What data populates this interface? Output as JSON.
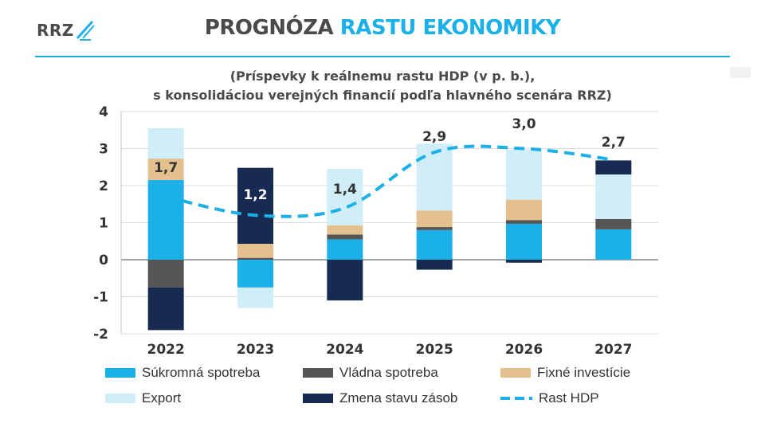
{
  "logo": {
    "text": "RRZ"
  },
  "header": {
    "title_part1": "PROGNÓZA",
    "title_part2": "RASTU EKONOMIKY"
  },
  "colors": {
    "accent": "#1bb0e8",
    "sukromna": "#1bb0e8",
    "vladna": "#555555",
    "fixne": "#e3c08e",
    "export": "#cfeef8",
    "zasoby": "#162a52",
    "hdp": "#1bb0e8"
  },
  "chart_data": {
    "type": "bar",
    "title": "(Príspevky k reálnemu rastu HDP (v p. b.),",
    "subtitle": "s konsolidáciou verejných financií podľa hlavného scenára RRZ)",
    "categories": [
      "2022",
      "2023",
      "2024",
      "2025",
      "2026",
      "2027"
    ],
    "ylim": [
      -2,
      4
    ],
    "yticks": [
      "-2",
      "-1",
      "0",
      "1",
      "2",
      "3",
      "4"
    ],
    "ytick_values": [
      -2,
      -1,
      0,
      1,
      2,
      3,
      4
    ],
    "grid": true,
    "legend_position": "bottom",
    "stacked": true,
    "series": [
      {
        "name": "Súkromná spotreba",
        "color": "#1bb0e8",
        "values": [
          2.15,
          -0.75,
          0.55,
          0.8,
          0.97,
          0.82
        ]
      },
      {
        "name": "Vládna spotreba",
        "color": "#555555",
        "values": [
          -0.75,
          0.05,
          0.13,
          0.08,
          0.1,
          0.28
        ]
      },
      {
        "name": "Fixné investície",
        "color": "#e3c08e",
        "values": [
          0.58,
          0.38,
          0.25,
          0.45,
          0.55,
          0.0
        ]
      },
      {
        "name": "Export",
        "color": "#cfeef8",
        "values": [
          0.82,
          -0.55,
          1.52,
          1.8,
          1.35,
          1.2
        ]
      },
      {
        "name": "Zmena stavu zásob",
        "color": "#162a52",
        "values": [
          -1.15,
          2.05,
          -1.1,
          -0.27,
          -0.08,
          0.38
        ]
      },
      {
        "name": "Rast HDP",
        "type": "line",
        "color": "#1bb0e8",
        "dash": true,
        "values": [
          1.7,
          1.2,
          1.4,
          2.9,
          3.0,
          2.7
        ]
      }
    ],
    "data_labels": [
      "1,7",
      "1,2",
      "1,4",
      "2,9",
      "3,0",
      "2,7"
    ]
  }
}
